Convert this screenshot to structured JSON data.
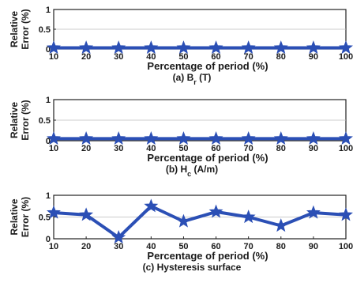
{
  "chart_data": [
    {
      "type": "line",
      "caption": "(a) B",
      "caption_sub": "r",
      "caption_tail": " (T)",
      "xlabel": "Percentage of period (%)",
      "ylabel": [
        "Relative",
        "Error (%)"
      ],
      "x": [
        10,
        20,
        30,
        40,
        50,
        60,
        70,
        80,
        90,
        100
      ],
      "xticks": [
        "10",
        "20",
        "30",
        "40",
        "50",
        "60",
        "70",
        "80",
        "90",
        "100"
      ],
      "ylim": [
        0,
        1
      ],
      "yticks": [
        "0",
        "0.5",
        "1"
      ],
      "series": [
        {
          "values": [
            0.03,
            0.03,
            0.03,
            0.03,
            0.03,
            0.03,
            0.03,
            0.03,
            0.03,
            0.03
          ],
          "color": "#2b4fb5",
          "marker": "star"
        }
      ]
    },
    {
      "type": "line",
      "caption": "(b) H",
      "caption_sub": "c",
      "caption_tail": " (A/m)",
      "xlabel": "Percentage of period (%)",
      "ylabel": [
        "Relative",
        "Error (%)"
      ],
      "x": [
        10,
        20,
        30,
        40,
        50,
        60,
        70,
        80,
        90,
        100
      ],
      "xticks": [
        "10",
        "20",
        "30",
        "40",
        "50",
        "60",
        "70",
        "80",
        "90",
        "100"
      ],
      "ylim": [
        0,
        1
      ],
      "yticks": [
        "0",
        "0.5",
        "1"
      ],
      "series": [
        {
          "values": [
            0.05,
            0.05,
            0.05,
            0.05,
            0.05,
            0.05,
            0.05,
            0.05,
            0.05,
            0.05
          ],
          "color": "#2b4fb5",
          "marker": "star"
        }
      ]
    },
    {
      "type": "line",
      "caption": "(c) Hysteresis surface",
      "caption_sub": "",
      "caption_tail": "",
      "xlabel": "Percentage of period (%)",
      "ylabel": [
        "Relative",
        "Error (%)"
      ],
      "x": [
        10,
        20,
        30,
        40,
        50,
        60,
        70,
        80,
        90,
        100
      ],
      "xticks": [
        "10",
        "20",
        "30",
        "40",
        "50",
        "60",
        "70",
        "80",
        "90",
        "100"
      ],
      "ylim": [
        0,
        1
      ],
      "yticks": [
        "0",
        "0.5",
        "1"
      ],
      "series": [
        {
          "values": [
            0.6,
            0.55,
            0.03,
            0.75,
            0.4,
            0.62,
            0.5,
            0.3,
            0.6,
            0.55
          ],
          "color": "#2b4fb5",
          "marker": "star"
        }
      ]
    }
  ]
}
